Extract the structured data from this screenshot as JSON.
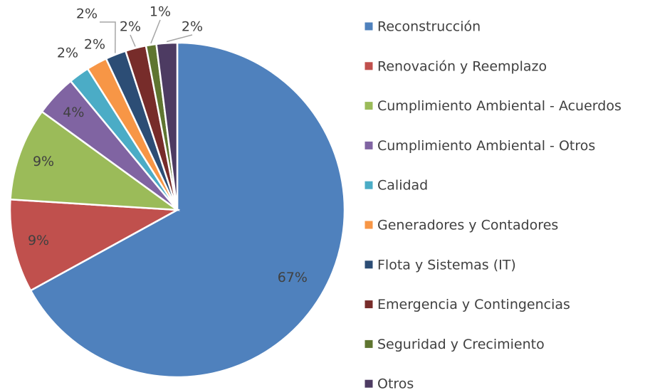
{
  "chart_data": {
    "type": "pie",
    "categories": [
      "Reconstrucción",
      "Renovación y Reemplazo",
      "Cumplimiento Ambiental - Acuerdos",
      "Cumplimiento Ambiental - Otros",
      "Calidad",
      "Generadores y Contadores",
      "Flota y Sistemas (IT)",
      "Emergencia y Contingencias",
      "Seguridad y Crecimiento",
      "Otros"
    ],
    "values": [
      67,
      9,
      9,
      4,
      2,
      2,
      2,
      2,
      1,
      2
    ],
    "value_labels": [
      "67%",
      "9%",
      "9%",
      "4%",
      "2%",
      "2%",
      "2%",
      "2%",
      "1%",
      "2%"
    ],
    "colors": [
      "#4f81bd",
      "#c0504d",
      "#9bbb59",
      "#8064a2",
      "#4bacc6",
      "#f79646",
      "#2c4d75",
      "#772c2a",
      "#5f7530",
      "#4d3b62"
    ],
    "legend": "right"
  }
}
